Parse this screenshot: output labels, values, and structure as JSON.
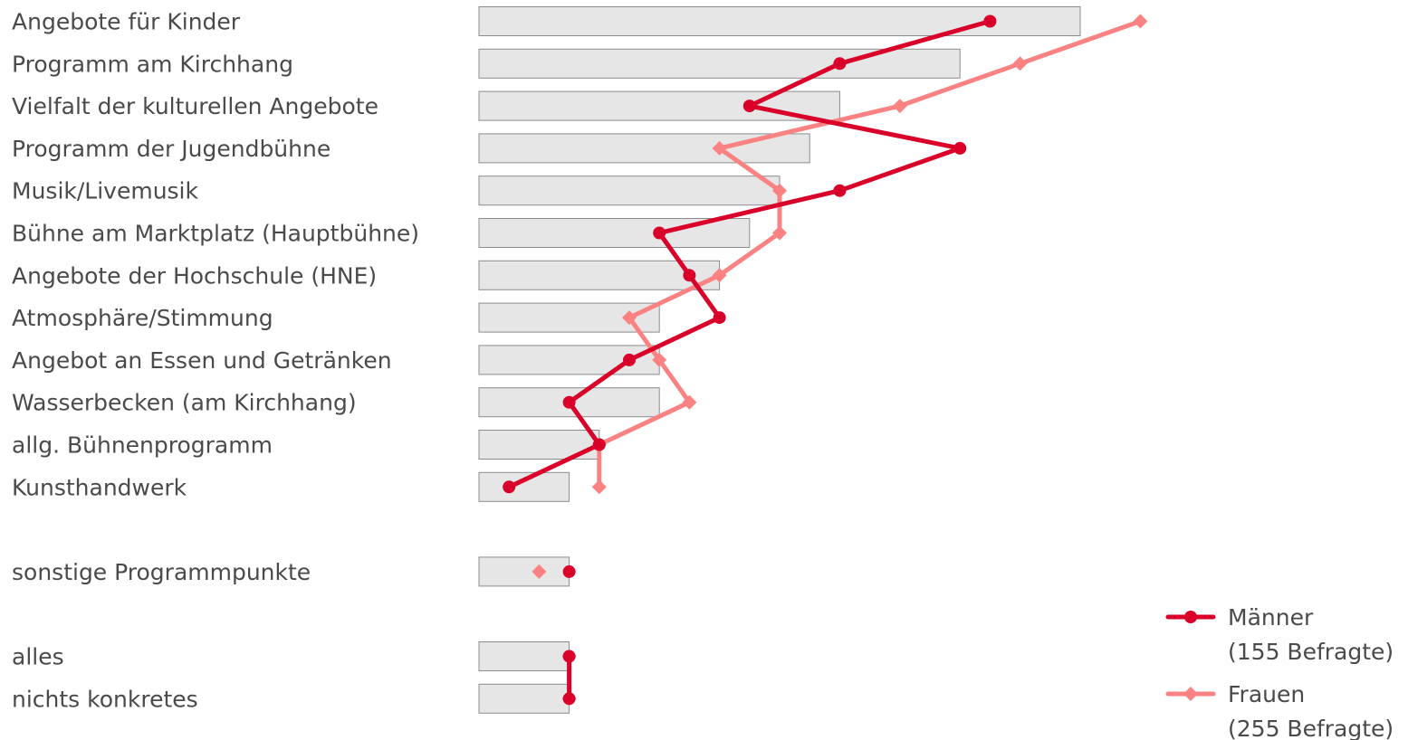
{
  "chart_data": {
    "type": "bar",
    "categories": [
      "Angebote für Kinder",
      "Programm am Kirchhang",
      "Vielfalt der kulturellen Angebote",
      "Programm der Jugendbühne",
      "Musik/Livemusik",
      "Bühne am Marktplatz (Hauptbühne)",
      "Angebote der Hochschule (HNE)",
      "Atmosphäre/Stimmung",
      "Angebot an Essen und Getränken",
      "Wasserbecken (am Kirchhang)",
      "allg. Bühnenprogramm",
      "Kunsthandwerk",
      "sonstige Programmpunkte",
      "alles",
      "nichts konkretes"
    ],
    "groups": [
      [
        0,
        11
      ],
      [
        12,
        12
      ],
      [
        13,
        14
      ]
    ],
    "values": [
      20,
      16,
      12,
      11,
      10,
      9,
      8,
      6,
      6,
      6,
      4,
      3,
      3,
      3,
      3
    ],
    "series": [
      {
        "name": "Männer",
        "sublabel": "(155 Befragte)",
        "marker": "circle",
        "color": "#d9002a",
        "values": [
          17,
          12,
          9,
          16,
          12,
          6,
          7,
          8,
          5,
          3,
          4,
          1,
          3,
          3,
          3
        ]
      },
      {
        "name": "Frauen",
        "sublabel": "(255 Befragte)",
        "marker": "diamond",
        "color": "#fb8282",
        "values": [
          22,
          18,
          14,
          8,
          10,
          10,
          8,
          5,
          6,
          7,
          4,
          4,
          2,
          3,
          3
        ]
      }
    ],
    "xlim": [
      0,
      22
    ],
    "bar_fill": "#e6e6e6",
    "bar_stroke": "#8c8c8c",
    "title": "",
    "xlabel": "",
    "ylabel": "",
    "legend_position": "bottom-right",
    "grid": false
  }
}
